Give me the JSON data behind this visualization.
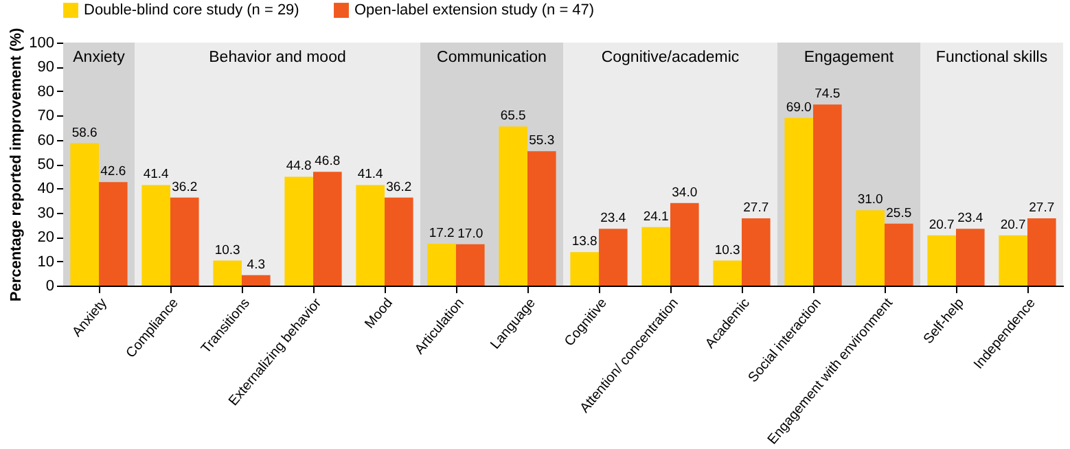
{
  "chart_data": {
    "type": "bar",
    "ylabel": "Percentage reported improvement (%)",
    "categories": [
      "Anxiety",
      "Compliance",
      "Transitions",
      "Externalizing behavior",
      "Mood",
      "Articulation",
      "Language",
      "Cognitive",
      "Attention/ concentration",
      "Academic",
      "Social interaction",
      "Engagement with environment",
      "Self-help",
      "Independence"
    ],
    "series": [
      {
        "name": "Double-blind core study (n = 29)",
        "color": "#ffd200",
        "values": [
          58.6,
          41.4,
          10.3,
          44.8,
          41.4,
          17.2,
          65.5,
          13.8,
          24.1,
          10.3,
          69.0,
          31.0,
          20.7,
          20.7
        ],
        "value_labels": [
          "58.6",
          "41.4",
          "10.3",
          "44.8",
          "41.4",
          "17.2",
          "65.5",
          "13.8",
          "24.1",
          "10.3",
          "69.0",
          "31.0",
          "20.7",
          "20.7"
        ]
      },
      {
        "name": "Open-label extension study (n = 47)",
        "color": "#f05a1e",
        "values": [
          42.6,
          36.2,
          4.3,
          46.8,
          36.2,
          17.0,
          55.3,
          23.4,
          34.0,
          27.7,
          74.5,
          25.5,
          23.4,
          27.7
        ],
        "value_labels": [
          "42.6",
          "36.2",
          "4.3",
          "46.8",
          "36.2",
          "17.0",
          "55.3",
          "23.4",
          "34.0",
          "27.7",
          "74.5",
          "25.5",
          "23.4",
          "27.7"
        ]
      }
    ],
    "ylim": [
      0,
      100
    ],
    "yticks": [
      0,
      10,
      20,
      30,
      40,
      50,
      60,
      70,
      80,
      90,
      100
    ],
    "bands": [
      {
        "axis": "x",
        "from": "Anxiety",
        "to": "Anxiety",
        "label": "Anxiety",
        "color": "#d3d3d3"
      },
      {
        "axis": "x",
        "from": "Compliance",
        "to": "Mood",
        "label": "Behavior and mood",
        "color": "#ececec"
      },
      {
        "axis": "x",
        "from": "Articulation",
        "to": "Language",
        "label": "Communication",
        "color": "#d3d3d3"
      },
      {
        "axis": "x",
        "from": "Cognitive",
        "to": "Academic",
        "label": "Cognitive/academic",
        "color": "#ececec"
      },
      {
        "axis": "x",
        "from": "Social interaction",
        "to": "Engagement with environment",
        "label": "Engagement",
        "color": "#d3d3d3"
      },
      {
        "axis": "x",
        "from": "Self-help",
        "to": "Independence",
        "label": "Functional skills",
        "color": "#ececec"
      }
    ],
    "legend": "top",
    "grid": false
  }
}
